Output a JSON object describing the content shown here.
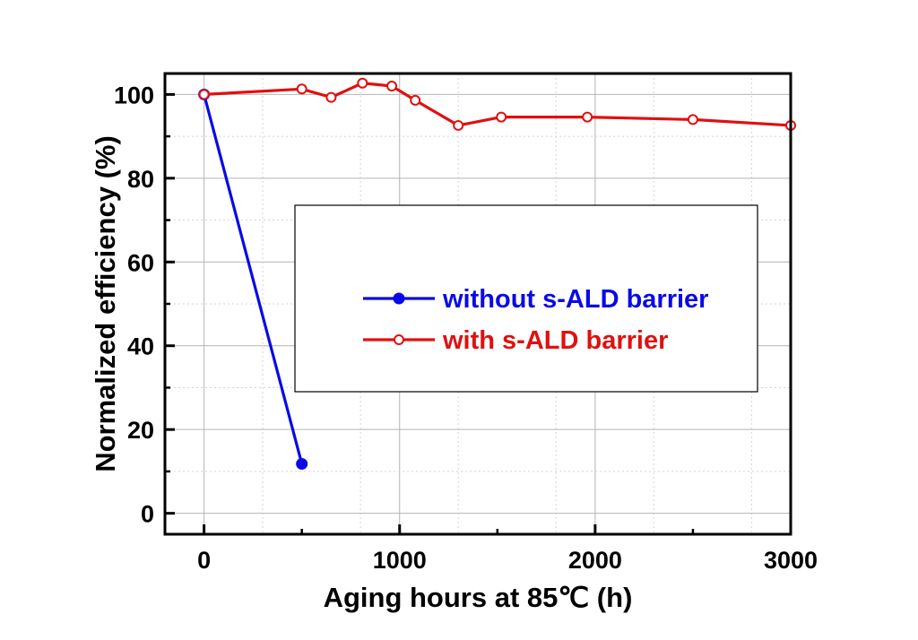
{
  "chart_data": {
    "type": "line",
    "title": "",
    "xlabel": "Aging hours at 85℃ (h)",
    "ylabel": "Normalized efficiency (%)",
    "xlim": [
      -200,
      3000
    ],
    "ylim": [
      -5,
      105
    ],
    "xticks": [
      0,
      1000,
      2000,
      3000
    ],
    "yticks": [
      0,
      20,
      40,
      60,
      80,
      100
    ],
    "grid": true,
    "legend_position": "center",
    "series": [
      {
        "name": "without s-ALD barrier",
        "color": "#0a0ae6",
        "marker": "filled-circle",
        "x": [
          0,
          500
        ],
        "y": [
          100,
          11.8
        ]
      },
      {
        "name": "with s-ALD barrier",
        "color": "#e01010",
        "marker": "open-circle",
        "x": [
          0,
          500,
          650,
          810,
          960,
          1080,
          1300,
          1520,
          1960,
          2500,
          3000
        ],
        "y": [
          100,
          101.3,
          99.3,
          102.7,
          102.0,
          98.6,
          92.6,
          94.6,
          94.6,
          94.0,
          92.6
        ]
      }
    ]
  }
}
